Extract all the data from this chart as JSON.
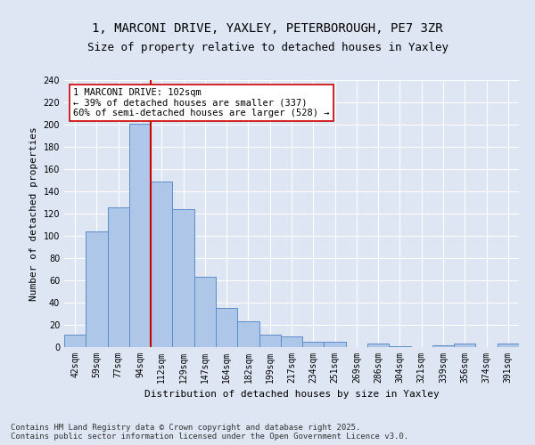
{
  "title_line1": "1, MARCONI DRIVE, YAXLEY, PETERBOROUGH, PE7 3ZR",
  "title_line2": "Size of property relative to detached houses in Yaxley",
  "xlabel": "Distribution of detached houses by size in Yaxley",
  "ylabel": "Number of detached properties",
  "categories": [
    "42sqm",
    "59sqm",
    "77sqm",
    "94sqm",
    "112sqm",
    "129sqm",
    "147sqm",
    "164sqm",
    "182sqm",
    "199sqm",
    "217sqm",
    "234sqm",
    "251sqm",
    "269sqm",
    "286sqm",
    "304sqm",
    "321sqm",
    "339sqm",
    "356sqm",
    "374sqm",
    "391sqm"
  ],
  "values": [
    11,
    104,
    126,
    201,
    149,
    124,
    63,
    35,
    23,
    11,
    10,
    5,
    5,
    0,
    3,
    1,
    0,
    2,
    3,
    0,
    3
  ],
  "bar_color": "#aec6e8",
  "bar_edge_color": "#5b8dc8",
  "background_color": "#dde6f2",
  "grid_color": "#ffffff",
  "vline_x": 3.5,
  "vline_color": "#cc0000",
  "annotation_text": "1 MARCONI DRIVE: 102sqm\n← 39% of detached houses are smaller (337)\n60% of semi-detached houses are larger (528) →",
  "annotation_box_color": "#ffffff",
  "annotation_box_edge": "#cc0000",
  "ylim": [
    0,
    240
  ],
  "yticks": [
    0,
    20,
    40,
    60,
    80,
    100,
    120,
    140,
    160,
    180,
    200,
    220,
    240
  ],
  "footnote": "Contains HM Land Registry data © Crown copyright and database right 2025.\nContains public sector information licensed under the Open Government Licence v3.0.",
  "title_fontsize": 10,
  "subtitle_fontsize": 9,
  "axis_label_fontsize": 8,
  "tick_fontsize": 7,
  "annotation_fontsize": 7.5,
  "footnote_fontsize": 6.5
}
